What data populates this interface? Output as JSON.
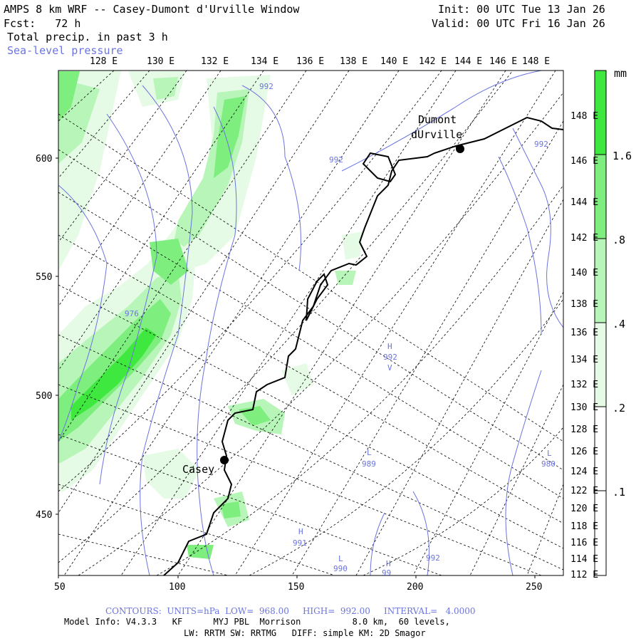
{
  "header": {
    "title": "AMPS 8 km WRF -- Casey-Dumont d'Urville Window",
    "forecast": "Fcst:   72 h",
    "field": "Total precip. in past 3 h",
    "overlay": "Sea-level pressure",
    "init": "Init: 00 UTC Tue 13 Jan 26",
    "valid": "Valid: 00 UTC Fri 16 Jan 26"
  },
  "top_longitudes": [
    "128 E",
    "130 E",
    "132 E",
    "134 E",
    "136 E",
    "138 E",
    "140 E",
    "142 E",
    "144 E",
    "146 E",
    "148 E"
  ],
  "right_longitudes": [
    "148 E",
    "146 E",
    "144 E",
    "142 E",
    "140 E",
    "138 E",
    "136 E",
    "134 E",
    "132 E",
    "130 E",
    "128 E",
    "126 E",
    "124 E",
    "122 E",
    "120 E",
    "118 E",
    "116 E",
    "114 E",
    "112 E"
  ],
  "left_ticks": [
    "600",
    "550",
    "500",
    "450"
  ],
  "bottom_ticks": [
    "50",
    "100",
    "150",
    "200",
    "250"
  ],
  "stations": [
    {
      "name": "Dumont",
      "name2": "dUrville"
    },
    {
      "name": "Casey"
    }
  ],
  "contour_labels": [
    "992",
    "992",
    "992",
    "976",
    "H",
    "992",
    "V",
    "L",
    "989",
    "L",
    "980",
    "H",
    "991",
    "992",
    "L",
    "990",
    "H",
    "99"
  ],
  "colorbar": {
    "unit": "mm",
    "labels": [
      "1.6",
      ".8",
      ".4",
      ".2",
      ".1"
    ],
    "colors": [
      "#3ee83e",
      "#7eee7e",
      "#b8f5b8",
      "#e6fbe6",
      "#ffffff"
    ]
  },
  "footer": {
    "contours": "CONTOURS:  UNITS=hPa  LOW=  968.00     HIGH=  992.00     INTERVAL=   4.0000",
    "model": "Model Info: V4.3.3   KF      MYJ PBL  Morrison          8.0 km,  60 levels,",
    "physics": "LW: RRTM SW: RRTMG   DIFF: simple KM: 2D Smagor"
  },
  "colors": {
    "contour": "#6b74e0",
    "coast": "#000000",
    "grid": "#000000"
  }
}
